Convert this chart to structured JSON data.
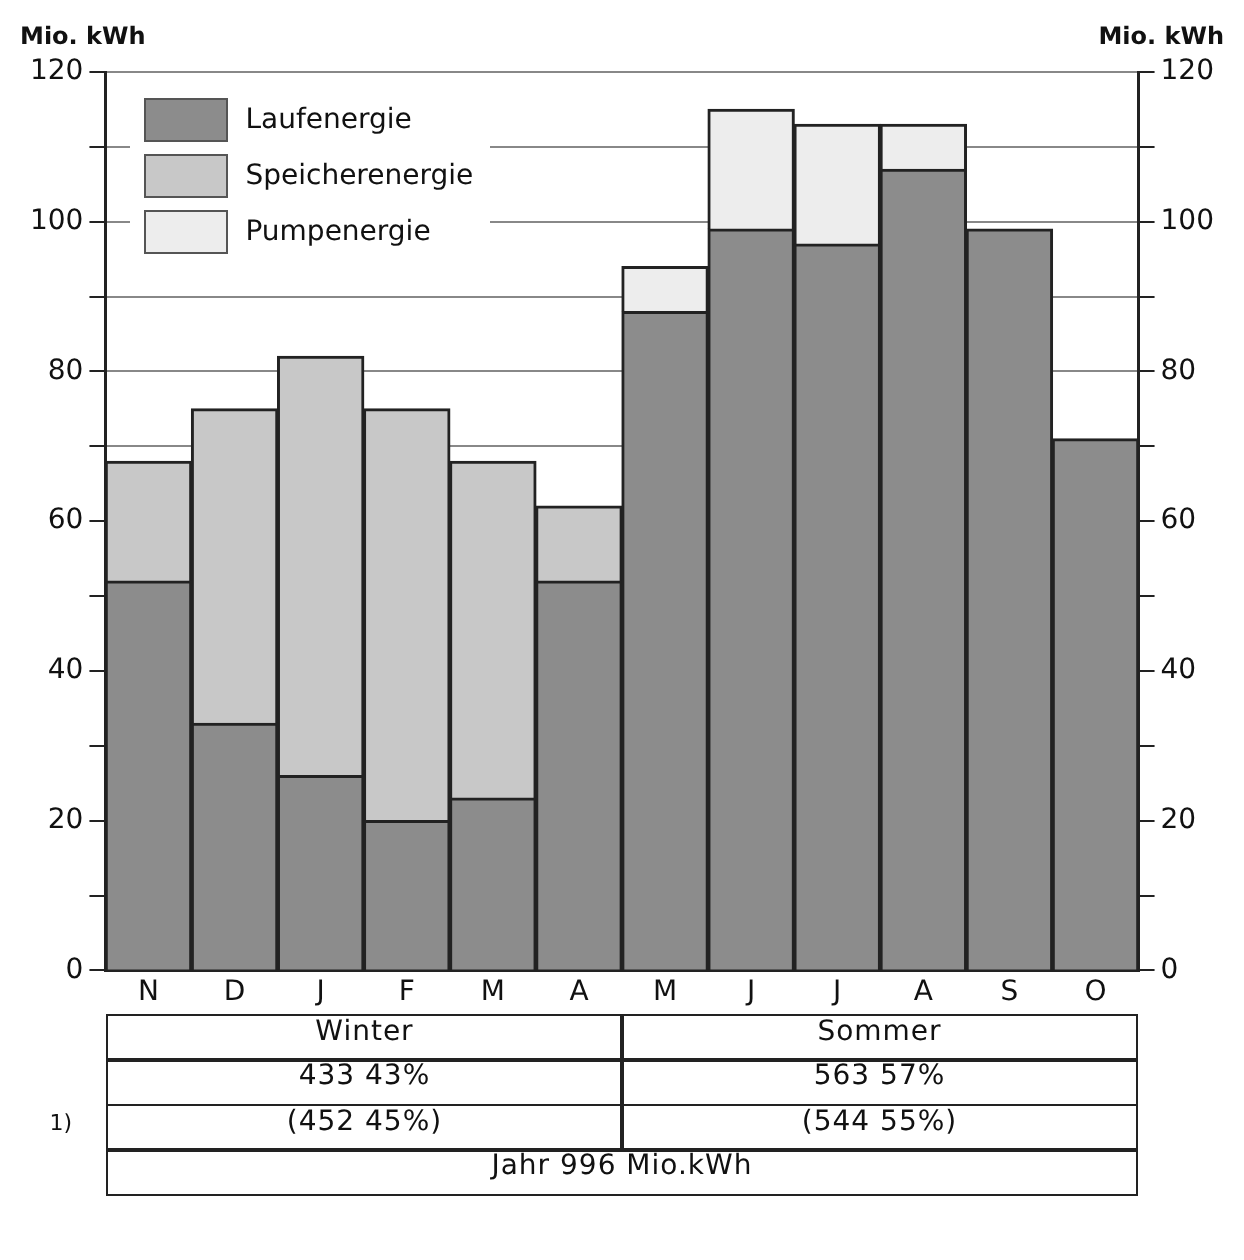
{
  "chart_data": {
    "type": "bar",
    "stacked": true,
    "ylabel": "Mio. kWh",
    "y2label": "Mio. kWh",
    "categories": [
      "N",
      "D",
      "J",
      "F",
      "M",
      "A",
      "M",
      "J",
      "J",
      "A",
      "S",
      "O"
    ],
    "series": [
      {
        "name": "Laufenergie",
        "color": "#8c8c8c",
        "values": [
          52,
          33,
          26,
          20,
          23,
          52,
          88,
          99,
          97,
          107,
          99,
          71
        ]
      },
      {
        "name": "Speicherenergie",
        "color": "#c8c8c8",
        "values": [
          16,
          42,
          56,
          55,
          45,
          10,
          null,
          null,
          null,
          null,
          null,
          null
        ]
      },
      {
        "name": "Pumpenergie",
        "color": "#ededed",
        "values": [
          null,
          null,
          null,
          null,
          null,
          null,
          6,
          16,
          16,
          6,
          null,
          null
        ]
      }
    ],
    "ylim": [
      0,
      120
    ],
    "yticks": [
      0,
      {
        "value": 10,
        "label": null
      },
      20,
      {
        "value": 30,
        "label": null
      },
      40,
      {
        "value": 50,
        "label": null
      },
      60,
      {
        "value": 70,
        "label": null
      },
      80,
      {
        "value": 90,
        "label": null
      },
      100,
      {
        "value": 110,
        "label": null
      },
      120
    ],
    "y2lim": [
      0,
      120
    ],
    "y2ticks": [
      0,
      {
        "value": 10,
        "label": null
      },
      20,
      {
        "value": 30,
        "label": null
      },
      40,
      {
        "value": 50,
        "label": null
      },
      60,
      {
        "value": 70,
        "label": null
      },
      80,
      {
        "value": 90,
        "label": null
      },
      100,
      {
        "value": 110,
        "label": null
      },
      120
    ],
    "grid": "y",
    "legend": "top left",
    "annotations": [
      "Winter",
      "Sommer",
      "433 43%",
      "563 57%",
      "1)",
      "(452 45%)",
      "(544 55%)",
      "Jahr 996 Mio.kWh"
    ]
  }
}
